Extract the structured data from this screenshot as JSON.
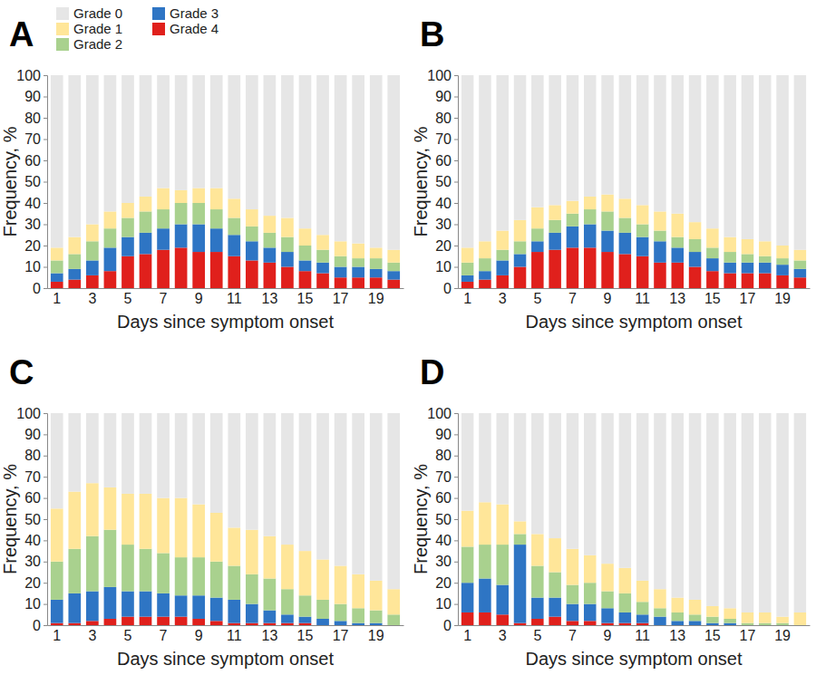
{
  "chart_data": [
    {
      "type": "bar",
      "title": "A",
      "stacked": true,
      "legend": "upper left",
      "x_label": "Days since symptom onset",
      "y_label": "Frequency, %",
      "categories": [
        "1",
        null,
        "3",
        null,
        "5",
        null,
        "7",
        null,
        "9",
        null,
        "11",
        null,
        "13",
        null,
        "15",
        null,
        "17",
        null,
        "19",
        null
      ],
      "ylim": [
        0,
        100
      ],
      "yticks": [
        0,
        10,
        20,
        30,
        40,
        50,
        60,
        70,
        80,
        90,
        100
      ],
      "series": [
        {
          "name": "Grade 0",
          "color": "#e6e6e6",
          "values": [
            81,
            76,
            70,
            64,
            60,
            57,
            53,
            54,
            53,
            53,
            58,
            63,
            66,
            67,
            72,
            75,
            78,
            79,
            81,
            82
          ]
        },
        {
          "name": "Grade 1",
          "color": "#ffe699",
          "values": [
            6,
            8,
            8,
            8,
            7,
            7,
            10,
            6,
            7,
            10,
            9,
            8,
            8,
            9,
            8,
            7,
            7,
            7,
            5,
            6
          ]
        },
        {
          "name": "Grade 2",
          "color": "#a9d18e",
          "values": [
            6,
            7,
            9,
            9,
            9,
            10,
            9,
            10,
            10,
            9,
            8,
            7,
            7,
            7,
            7,
            6,
            5,
            4,
            5,
            4
          ]
        },
        {
          "name": "Grade 3",
          "color": "#2e75c4",
          "values": [
            4,
            5,
            7,
            11,
            9,
            10,
            10,
            11,
            13,
            11,
            10,
            9,
            7,
            7,
            5,
            5,
            5,
            5,
            4,
            4
          ]
        },
        {
          "name": "Grade 4",
          "color": "#e0201c",
          "values": [
            3,
            4,
            6,
            8,
            15,
            16,
            18,
            19,
            17,
            17,
            15,
            13,
            12,
            10,
            8,
            7,
            5,
            5,
            5,
            4
          ]
        }
      ]
    },
    {
      "type": "bar",
      "title": "B",
      "stacked": true,
      "x_label": "Days since symptom onset",
      "y_label": "Frequency, %",
      "categories": [
        "1",
        null,
        "3",
        null,
        "5",
        null,
        "7",
        null,
        "9",
        null,
        "11",
        null,
        "13",
        null,
        "15",
        null,
        "17",
        null,
        "19",
        null
      ],
      "ylim": [
        0,
        100
      ],
      "yticks": [
        0,
        10,
        20,
        30,
        40,
        50,
        60,
        70,
        80,
        90,
        100
      ],
      "series": [
        {
          "color": "#e6e6e6",
          "values": [
            81,
            78,
            73,
            68,
            62,
            61,
            59,
            57,
            56,
            58,
            61,
            64,
            65,
            69,
            72,
            76,
            77,
            78,
            80,
            82
          ]
        },
        {
          "color": "#ffe699",
          "values": [
            7,
            8,
            9,
            10,
            10,
            7,
            6,
            6,
            8,
            9,
            9,
            9,
            11,
            8,
            9,
            7,
            7,
            7,
            6,
            5
          ]
        },
        {
          "color": "#a9d18e",
          "values": [
            6,
            6,
            5,
            6,
            6,
            6,
            6,
            7,
            9,
            7,
            6,
            5,
            5,
            6,
            5,
            5,
            4,
            3,
            3,
            4
          ]
        },
        {
          "color": "#2e75c4",
          "values": [
            3,
            4,
            7,
            6,
            5,
            8,
            10,
            11,
            10,
            10,
            9,
            10,
            7,
            7,
            6,
            5,
            5,
            5,
            5,
            4
          ]
        },
        {
          "color": "#e0201c",
          "values": [
            3,
            4,
            6,
            10,
            17,
            18,
            19,
            19,
            17,
            16,
            15,
            12,
            12,
            10,
            8,
            7,
            7,
            7,
            6,
            5
          ]
        }
      ]
    },
    {
      "type": "bar",
      "title": "C",
      "stacked": true,
      "x_label": "Days since symptom onset",
      "y_label": "Frequency, %",
      "categories": [
        "1",
        null,
        "3",
        null,
        "5",
        null,
        "7",
        null,
        "9",
        null,
        "11",
        null,
        "13",
        null,
        "15",
        null,
        "17",
        null,
        "19",
        null
      ],
      "ylim": [
        0,
        100
      ],
      "yticks": [
        0,
        10,
        20,
        30,
        40,
        50,
        60,
        70,
        80,
        90,
        100
      ],
      "series": [
        {
          "color": "#e6e6e6",
          "values": [
            45,
            37,
            33,
            35,
            38,
            38,
            40,
            40,
            43,
            47,
            54,
            55,
            58,
            62,
            65,
            69,
            72,
            76,
            79,
            83
          ]
        },
        {
          "color": "#ffe699",
          "values": [
            25,
            27,
            25,
            20,
            24,
            26,
            26,
            28,
            25,
            23,
            18,
            21,
            20,
            21,
            21,
            19,
            18,
            16,
            14,
            12
          ]
        },
        {
          "color": "#a9d18e",
          "values": [
            18,
            21,
            26,
            27,
            22,
            20,
            19,
            18,
            18,
            17,
            16,
            14,
            15,
            12,
            10,
            9,
            8,
            7,
            6,
            5
          ]
        },
        {
          "color": "#2e75c4",
          "values": [
            11,
            14,
            14,
            15,
            12,
            12,
            11,
            10,
            11,
            11,
            11,
            9,
            6,
            4,
            3,
            3,
            2,
            1,
            1,
            0
          ]
        },
        {
          "color": "#e0201c",
          "values": [
            1,
            1,
            2,
            3,
            4,
            4,
            4,
            4,
            3,
            2,
            1,
            1,
            1,
            1,
            1,
            0,
            0,
            0,
            0,
            0
          ]
        }
      ]
    },
    {
      "type": "bar",
      "title": "D",
      "stacked": true,
      "x_label": "Days since symptom onset",
      "y_label": "Frequency, %",
      "categories": [
        "1",
        null,
        "3",
        null,
        "5",
        null,
        "7",
        null,
        "9",
        null,
        "11",
        null,
        "13",
        null,
        "15",
        null,
        "17",
        null,
        "19",
        null
      ],
      "ylim": [
        0,
        100
      ],
      "yticks": [
        0,
        10,
        20,
        30,
        40,
        50,
        60,
        70,
        80,
        90,
        100
      ],
      "series": [
        {
          "color": "#e6e6e6",
          "values": [
            46,
            42,
            43,
            51,
            57,
            59,
            64,
            67,
            71,
            73,
            79,
            83,
            87,
            88,
            91,
            92,
            94,
            94,
            96,
            94
          ]
        },
        {
          "color": "#ffe699",
          "values": [
            17,
            20,
            19,
            6,
            15,
            16,
            17,
            13,
            13,
            12,
            10,
            9,
            7,
            7,
            5,
            5,
            5,
            5,
            3,
            6
          ]
        },
        {
          "color": "#a9d18e",
          "values": [
            17,
            16,
            19,
            5,
            15,
            12,
            9,
            10,
            8,
            9,
            6,
            4,
            4,
            3,
            3,
            2,
            1,
            1,
            1,
            0
          ]
        },
        {
          "color": "#2e75c4",
          "values": [
            14,
            16,
            14,
            37,
            10,
            9,
            8,
            8,
            7,
            5,
            4,
            4,
            2,
            2,
            1,
            1,
            0,
            0,
            0,
            0
          ]
        },
        {
          "color": "#e0201c",
          "values": [
            6,
            6,
            5,
            1,
            3,
            4,
            2,
            2,
            1,
            1,
            1,
            0,
            0,
            0,
            0,
            0,
            0,
            0,
            0,
            0
          ]
        }
      ]
    }
  ]
}
